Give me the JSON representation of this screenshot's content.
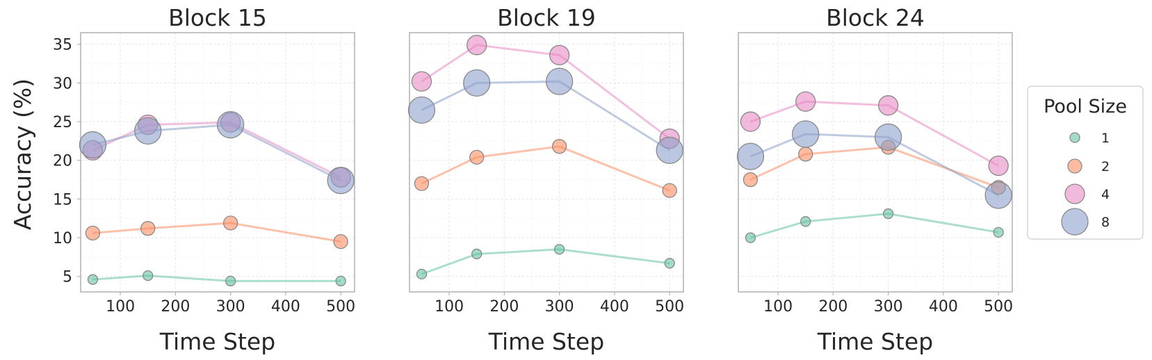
{
  "chart_data": {
    "type": "scatter",
    "ylabel": "Accuracy (%)",
    "shared_y": true,
    "ylim": [
      3,
      36.5
    ],
    "yticks": [
      5,
      10,
      15,
      20,
      25,
      30,
      35
    ],
    "xlim": [
      28,
      525
    ],
    "xticks": [
      100,
      200,
      300,
      400,
      500
    ],
    "grid": true,
    "legend": {
      "title": "Pool Size",
      "placement": "right",
      "entries": [
        {
          "label": "1",
          "color": "#66c2a5"
        },
        {
          "label": "2",
          "color": "#fc8d62"
        },
        {
          "label": "4",
          "color": "#e78ac3"
        },
        {
          "label": "8",
          "color": "#8da0cb"
        }
      ]
    },
    "panels": [
      {
        "title": "Block 15",
        "xlabel": "Time Step",
        "x": [
          50,
          150,
          300,
          500
        ],
        "series": [
          {
            "name": "1",
            "values": [
              4.6,
              5.1,
              4.4,
              4.4
            ]
          },
          {
            "name": "2",
            "values": [
              10.6,
              11.2,
              11.9,
              9.5
            ]
          },
          {
            "name": "4",
            "values": [
              21.3,
              24.6,
              24.9,
              17.8
            ]
          },
          {
            "name": "8",
            "values": [
              22.0,
              23.8,
              24.6,
              17.4
            ]
          }
        ]
      },
      {
        "title": "Block 19",
        "xlabel": "Time Step",
        "x": [
          50,
          150,
          300,
          500
        ],
        "series": [
          {
            "name": "1",
            "values": [
              5.3,
              7.9,
              8.5,
              6.7
            ]
          },
          {
            "name": "2",
            "values": [
              17.0,
              20.4,
              21.8,
              16.1
            ]
          },
          {
            "name": "4",
            "values": [
              30.2,
              34.9,
              33.6,
              22.8
            ]
          },
          {
            "name": "8",
            "values": [
              26.5,
              30.0,
              30.2,
              21.3
            ]
          }
        ]
      },
      {
        "title": "Block 24",
        "xlabel": "Time Step",
        "x": [
          50,
          150,
          300,
          500
        ],
        "series": [
          {
            "name": "1",
            "values": [
              10.0,
              12.1,
              13.1,
              10.7
            ]
          },
          {
            "name": "2",
            "values": [
              17.5,
              20.8,
              21.7,
              16.5
            ]
          },
          {
            "name": "4",
            "values": [
              25.0,
              27.6,
              27.1,
              19.3
            ]
          },
          {
            "name": "8",
            "values": [
              20.5,
              23.4,
              23.0,
              15.5
            ]
          }
        ]
      }
    ]
  }
}
